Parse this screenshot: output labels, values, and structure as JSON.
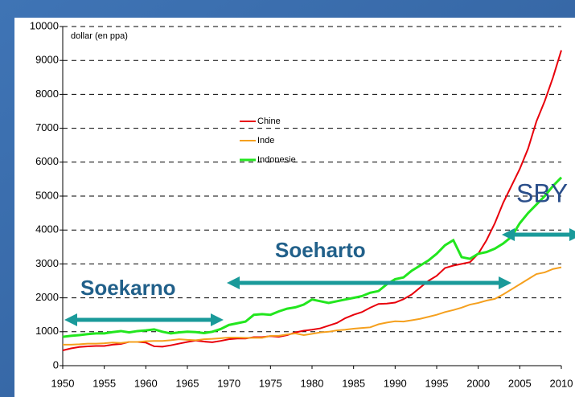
{
  "chart_data": {
    "type": "line",
    "y_label": "dollar (en ppa)",
    "x": [
      1950,
      1951,
      1952,
      1953,
      1954,
      1955,
      1956,
      1957,
      1958,
      1959,
      1960,
      1961,
      1962,
      1963,
      1964,
      1965,
      1966,
      1967,
      1968,
      1969,
      1970,
      1971,
      1972,
      1973,
      1974,
      1975,
      1976,
      1977,
      1978,
      1979,
      1980,
      1981,
      1982,
      1983,
      1984,
      1985,
      1986,
      1987,
      1988,
      1989,
      1990,
      1991,
      1992,
      1993,
      1994,
      1995,
      1996,
      1997,
      1998,
      1999,
      2000,
      2001,
      2002,
      2003,
      2004,
      2005,
      2006,
      2007,
      2008,
      2009,
      2010
    ],
    "series": [
      {
        "name": "Chine",
        "color": "#e8000b",
        "values": [
          450,
          510,
          550,
          570,
          580,
          580,
          620,
          640,
          700,
          700,
          680,
          570,
          560,
          600,
          650,
          700,
          740,
          710,
          690,
          730,
          780,
          800,
          800,
          840,
          840,
          870,
          850,
          900,
          980,
          1030,
          1060,
          1100,
          1180,
          1260,
          1400,
          1500,
          1580,
          1710,
          1820,
          1830,
          1860,
          1960,
          2100,
          2300,
          2500,
          2650,
          2880,
          2950,
          3000,
          3050,
          3300,
          3700,
          4200,
          4800,
          5300,
          5800,
          6400,
          7200,
          7800,
          8500,
          9300
        ]
      },
      {
        "name": "Inde",
        "color": "#f5a01e",
        "values": [
          620,
          620,
          630,
          650,
          650,
          660,
          680,
          670,
          700,
          700,
          720,
          730,
          730,
          750,
          780,
          760,
          750,
          780,
          790,
          810,
          830,
          830,
          820,
          820,
          820,
          880,
          880,
          920,
          950,
          900,
          940,
          980,
          1000,
          1040,
          1060,
          1090,
          1110,
          1130,
          1220,
          1270,
          1310,
          1300,
          1340,
          1380,
          1440,
          1500,
          1580,
          1640,
          1710,
          1800,
          1850,
          1920,
          1970,
          2100,
          2250,
          2400,
          2550,
          2700,
          2750,
          2850,
          2900
        ]
      },
      {
        "name": "Indonesie",
        "color": "#22e61e",
        "values": [
          850,
          880,
          900,
          930,
          950,
          950,
          990,
          1020,
          980,
          1020,
          1040,
          1070,
          1000,
          950,
          980,
          1000,
          990,
          960,
          1000,
          1080,
          1200,
          1250,
          1300,
          1500,
          1520,
          1500,
          1600,
          1680,
          1720,
          1800,
          1950,
          1900,
          1850,
          1900,
          1950,
          2000,
          2050,
          2150,
          2200,
          2400,
          2550,
          2600,
          2800,
          2950,
          3100,
          3300,
          3550,
          3700,
          3200,
          3150,
          3300,
          3350,
          3450,
          3600,
          3800,
          4200,
          4500,
          4750,
          5000,
          5300,
          5550
        ]
      }
    ],
    "xlim": [
      1950,
      2010
    ],
    "xticks": [
      1950,
      1955,
      1960,
      1965,
      1970,
      1975,
      1980,
      1985,
      1990,
      1995,
      2000,
      2005,
      2010
    ],
    "ylim": [
      0,
      10000
    ],
    "yticks": [
      0,
      1000,
      2000,
      3000,
      4000,
      5000,
      6000,
      7000,
      8000,
      9000,
      10000
    ],
    "grid": true,
    "annotations": [
      {
        "text": "Soekarno"
      },
      {
        "text": "Soeharto"
      },
      {
        "text": "SBY"
      }
    ]
  }
}
